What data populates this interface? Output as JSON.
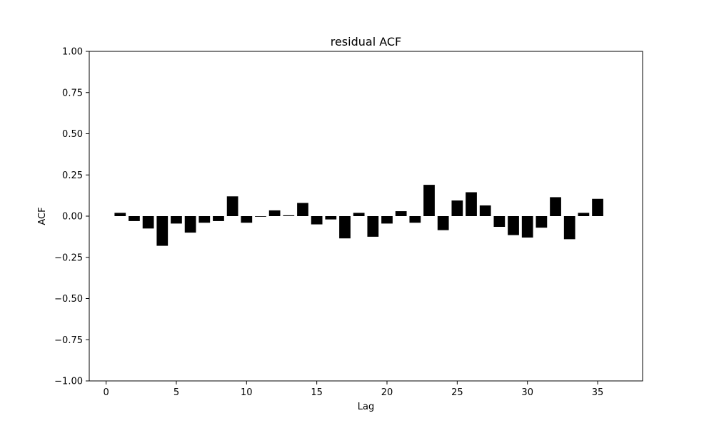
{
  "chart_data": {
    "type": "bar",
    "title": "residual ACF",
    "xlabel": "Lag",
    "ylabel": "ACF",
    "xlim": [
      -1.2,
      38.2
    ],
    "ylim": [
      -1.0,
      1.0
    ],
    "x_ticks": [
      0,
      5,
      10,
      15,
      20,
      25,
      30,
      35
    ],
    "y_ticks": [
      -1.0,
      -0.75,
      -0.5,
      -0.25,
      0.0,
      0.25,
      0.5,
      0.75,
      1.0
    ],
    "y_tick_labels": [
      "−1.00",
      "−0.75",
      "−0.50",
      "−0.25",
      "0.00",
      "0.25",
      "0.50",
      "0.75",
      "1.00"
    ],
    "bar_color": "#000000",
    "grid": false,
    "x": [
      1,
      2,
      3,
      4,
      5,
      6,
      7,
      8,
      9,
      10,
      11,
      12,
      13,
      14,
      15,
      16,
      17,
      18,
      19,
      20,
      21,
      22,
      23,
      24,
      25,
      26,
      27,
      28,
      29,
      30,
      31,
      32,
      33,
      34,
      35
    ],
    "values": [
      0.02,
      -0.03,
      -0.075,
      -0.18,
      -0.045,
      -0.1,
      -0.04,
      -0.03,
      0.12,
      -0.04,
      0.0,
      0.035,
      0.005,
      0.08,
      -0.05,
      -0.02,
      -0.135,
      0.02,
      -0.125,
      -0.045,
      0.03,
      -0.04,
      0.19,
      -0.085,
      0.095,
      0.145,
      0.065,
      -0.065,
      -0.115,
      -0.13,
      -0.07,
      0.115,
      -0.14,
      0.02,
      0.105
    ]
  }
}
